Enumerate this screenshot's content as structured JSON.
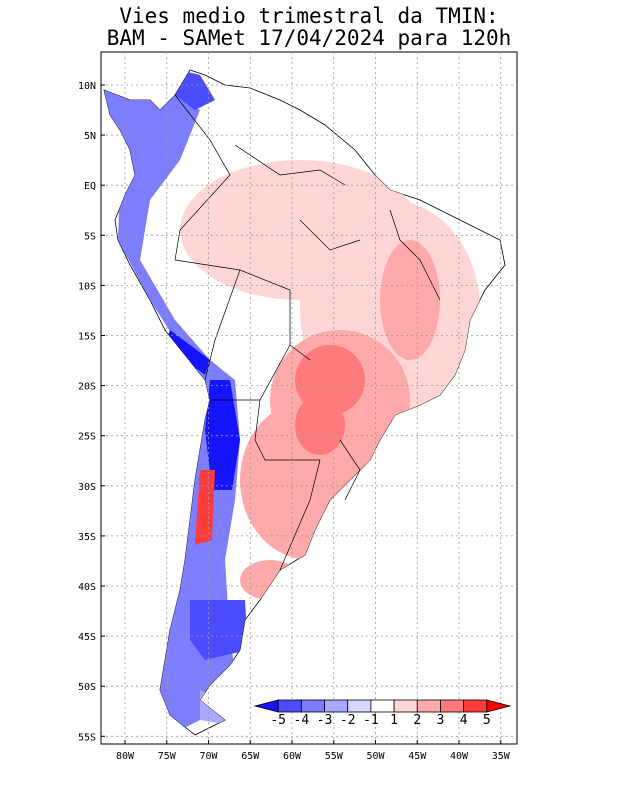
{
  "title": {
    "line1": "Vies medio trimestral da TMIN:",
    "line2": "BAM - SAMet 17/04/2024  para 120h"
  },
  "map": {
    "lat_labels": [
      "10N",
      "5N",
      "EQ",
      "5S",
      "10S",
      "15S",
      "20S",
      "25S",
      "30S",
      "35S",
      "40S",
      "45S",
      "50S",
      "55S"
    ],
    "lon_labels": [
      "80W",
      "75W",
      "70W",
      "65W",
      "60W",
      "55W",
      "50W",
      "45W",
      "40W",
      "35W"
    ],
    "lat_values": [
      10,
      5,
      0,
      -5,
      -10,
      -15,
      -20,
      -25,
      -30,
      -35,
      -40,
      -45,
      -50,
      -55
    ],
    "lon_values": [
      -80,
      -75,
      -70,
      -65,
      -60,
      -55,
      -50,
      -45,
      -40,
      -35
    ],
    "grid": "dotted"
  },
  "colorbar": {
    "labels": [
      "-5",
      "-4",
      "-3",
      "-2",
      "-1",
      "1",
      "2",
      "3",
      "4",
      "5"
    ],
    "colors": [
      "#1414ff",
      "#4b4bff",
      "#7d7dff",
      "#a9a9ff",
      "#d6d6ff",
      "#ffffff",
      "#ffd6d6",
      "#ffaaaa",
      "#ff7a7a",
      "#ff3c3c",
      "#ff0000"
    ]
  },
  "colors": {
    "land_neutral": "#ffffff",
    "ocean": "#ffffff",
    "border": "#000000"
  }
}
